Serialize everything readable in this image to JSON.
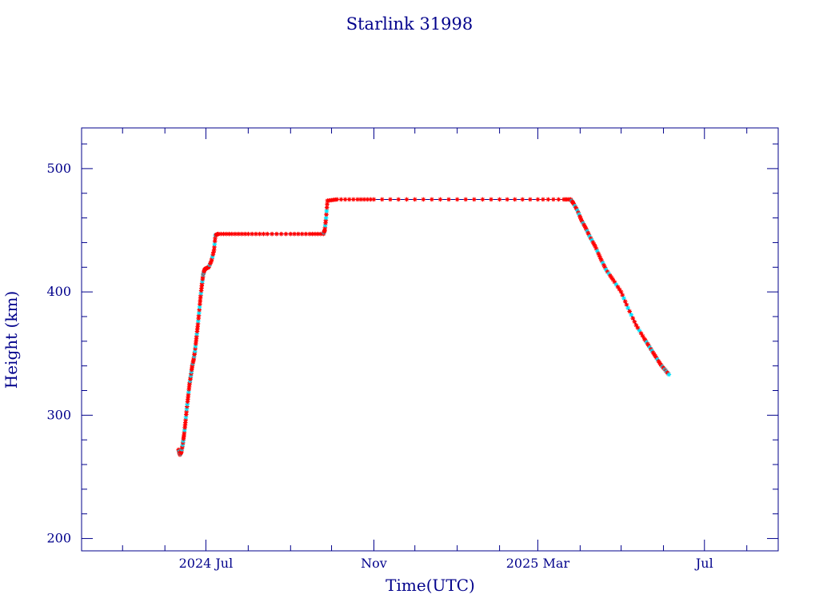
{
  "colors": {
    "frame": "#00008b",
    "text": "#00008b",
    "line": "#00008b",
    "marker_primary": "#ff0000",
    "marker_secondary": "#00e5ff"
  },
  "chart_data": {
    "type": "line",
    "title": "Starlink 31998",
    "xlabel": "Time(UTC)",
    "ylabel": "Height (km)",
    "ylim": [
      190,
      533
    ],
    "xlim": [
      "2024-04-01",
      "2025-08-24"
    ],
    "grid": false,
    "legend": "none",
    "x_ticks": [
      {
        "date": "2024-07-01",
        "label": "2024 Jul"
      },
      {
        "date": "2024-11-01",
        "label": "Nov"
      },
      {
        "date": "2025-03-01",
        "label": "2025 Mar"
      },
      {
        "date": "2025-07-01",
        "label": "Jul"
      }
    ],
    "y_ticks": [
      {
        "value": 200,
        "label": "200"
      },
      {
        "value": 300,
        "label": "300"
      },
      {
        "value": 400,
        "label": "400"
      },
      {
        "value": 500,
        "label": "500"
      }
    ],
    "series": [
      {
        "x": [
          "2024-06-11",
          "2024-06-12",
          "2024-06-13",
          "2024-06-14",
          "2024-06-15",
          "2024-06-16",
          "2024-06-17",
          "2024-06-18",
          "2024-06-19",
          "2024-06-20",
          "2024-06-21",
          "2024-06-22",
          "2024-06-23",
          "2024-06-24",
          "2024-06-25",
          "2024-06-26",
          "2024-06-27",
          "2024-06-28",
          "2024-06-29",
          "2024-06-30",
          "2024-07-01",
          "2024-07-03",
          "2024-07-05",
          "2024-07-07",
          "2024-07-08",
          "2024-07-10",
          "2024-07-20",
          "2024-08-01",
          "2024-08-15",
          "2024-09-01",
          "2024-09-15",
          "2024-09-25",
          "2024-09-26",
          "2024-09-27",
          "2024-09-28",
          "2024-10-05",
          "2024-10-20",
          "2024-11-01",
          "2024-12-01",
          "2025-01-01",
          "2025-02-01",
          "2025-03-01",
          "2025-03-20",
          "2025-03-25",
          "2025-03-27",
          "2025-03-30",
          "2025-04-02",
          "2025-04-05",
          "2025-04-08",
          "2025-04-12",
          "2025-04-16",
          "2025-04-20",
          "2025-04-25",
          "2025-05-01",
          "2025-05-06",
          "2025-05-12",
          "2025-05-18",
          "2025-05-22",
          "2025-05-26",
          "2025-05-30",
          "2025-06-02",
          "2025-06-05"
        ],
        "values": [
          272,
          268,
          270,
          276,
          284,
          294,
          305,
          315,
          325,
          332,
          340,
          345,
          352,
          362,
          372,
          383,
          395,
          405,
          414,
          418,
          419,
          420,
          425,
          434,
          446,
          447,
          447,
          447,
          447,
          447,
          447,
          447,
          450,
          460,
          474,
          475,
          475,
          475,
          475,
          475,
          475,
          475,
          475,
          475,
          472,
          466,
          458,
          452,
          445,
          437,
          427,
          418,
          410,
          400,
          387,
          373,
          362,
          355,
          348,
          341,
          337,
          333
        ]
      }
    ]
  }
}
